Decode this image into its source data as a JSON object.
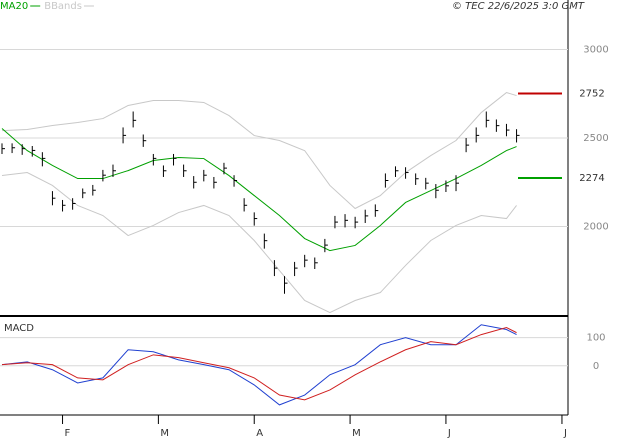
{
  "header": {
    "credit": "© TEC 22/6/2025 3:0 GMT"
  },
  "chart_data": [
    {
      "type": "hlc",
      "xlim": [
        0,
        112
      ],
      "ylim": [
        1500,
        3280
      ],
      "yticks": [
        3000,
        2500,
        2000
      ],
      "grid": true,
      "bars": {
        "color": "#000000",
        "x": [
          0,
          2,
          4,
          6,
          8,
          10,
          12,
          14,
          16,
          18,
          20,
          22,
          24,
          26,
          28,
          30,
          32,
          34,
          36,
          38,
          40,
          42,
          44,
          46,
          48,
          50,
          52,
          54,
          56,
          58,
          60,
          62,
          64,
          66,
          68,
          70,
          72,
          74,
          76,
          78,
          80,
          82,
          84,
          86,
          88,
          90,
          92,
          94,
          96,
          98,
          100,
          102
        ],
        "high": [
          2470,
          2470,
          2465,
          2455,
          2420,
          2200,
          2150,
          2160,
          2215,
          2235,
          2320,
          2350,
          2560,
          2650,
          2520,
          2410,
          2345,
          2410,
          2350,
          2285,
          2320,
          2280,
          2360,
          2290,
          2160,
          2080,
          1960,
          1810,
          1720,
          1800,
          1840,
          1825,
          1930,
          2060,
          2070,
          2055,
          2095,
          2125,
          2300,
          2340,
          2335,
          2300,
          2275,
          2240,
          2260,
          2290,
          2500,
          2560,
          2650,
          2605,
          2580,
          2550
        ],
        "low": [
          2410,
          2415,
          2405,
          2395,
          2340,
          2120,
          2085,
          2095,
          2160,
          2175,
          2255,
          2280,
          2470,
          2560,
          2450,
          2345,
          2280,
          2345,
          2280,
          2215,
          2255,
          2215,
          2295,
          2225,
          2085,
          2005,
          1875,
          1720,
          1620,
          1720,
          1770,
          1760,
          1855,
          1990,
          1995,
          1990,
          2020,
          2055,
          2220,
          2280,
          2270,
          2235,
          2210,
          2160,
          2195,
          2200,
          2420,
          2475,
          2560,
          2535,
          2510,
          2475
        ],
        "close": [
          2440,
          2445,
          2440,
          2430,
          2385,
          2160,
          2120,
          2130,
          2190,
          2205,
          2290,
          2315,
          2515,
          2600,
          2485,
          2385,
          2315,
          2385,
          2315,
          2250,
          2290,
          2250,
          2330,
          2260,
          2120,
          2045,
          1920,
          1765,
          1680,
          1765,
          1810,
          1795,
          1895,
          2025,
          2035,
          2025,
          2060,
          2090,
          2260,
          2315,
          2305,
          2270,
          2245,
          2205,
          2230,
          2245,
          2460,
          2515,
          2600,
          2570,
          2545,
          2515
        ]
      },
      "series": [
        {
          "name": "MA20",
          "color": "#00a000",
          "x": [
            0,
            5,
            10,
            15,
            20,
            25,
            30,
            35,
            40,
            45,
            50,
            55,
            60,
            65,
            70,
            75,
            80,
            85,
            90,
            95,
            100,
            102
          ],
          "values": [
            2554,
            2429,
            2345,
            2271,
            2271,
            2316,
            2373,
            2390,
            2384,
            2288,
            2175,
            2062,
            1932,
            1864,
            1893,
            2006,
            2136,
            2203,
            2271,
            2345,
            2429,
            2452
          ]
        },
        {
          "name": "BBands",
          "color": "#c8c8c8",
          "x": [
            0,
            5,
            10,
            15,
            20,
            25,
            30,
            35,
            40,
            45,
            50,
            55,
            60,
            65,
            70,
            75,
            80,
            85,
            90,
            95,
            100,
            102
          ],
          "upper": [
            2542,
            2548,
            2571,
            2588,
            2610,
            2684,
            2712,
            2712,
            2701,
            2627,
            2514,
            2486,
            2429,
            2232,
            2102,
            2175,
            2305,
            2401,
            2486,
            2644,
            2757,
            2740
          ],
          "lower": [
            2288,
            2305,
            2232,
            2119,
            2062,
            1949,
            2006,
            2079,
            2119,
            2062,
            1921,
            1751,
            1582,
            1514,
            1582,
            1627,
            1780,
            1921,
            2006,
            2062,
            2045,
            2119
          ]
        }
      ],
      "levels": [
        {
          "value": 2752,
          "color": "#c00000"
        },
        {
          "value": 2274,
          "color": "#00a000"
        }
      ]
    },
    {
      "type": "line",
      "title": "MACD",
      "xlim": [
        0,
        112
      ],
      "ylim": [
        -175,
        170
      ],
      "yticks": [
        100,
        0
      ],
      "grid": true,
      "xticks": [
        {
          "value": 12,
          "label": "F"
        },
        {
          "value": 31,
          "label": "M"
        },
        {
          "value": 50,
          "label": "A"
        },
        {
          "value": 69,
          "label": "M"
        },
        {
          "value": 88,
          "label": "J"
        },
        {
          "value": 111,
          "label": "J"
        }
      ],
      "x": [
        0,
        5,
        10,
        15,
        20,
        25,
        30,
        35,
        40,
        45,
        50,
        55,
        60,
        65,
        70,
        75,
        80,
        85,
        90,
        95,
        100,
        102
      ],
      "series": [
        {
          "color": "#2040d0",
          "values": [
            4,
            14,
            -14,
            -61,
            -43,
            57,
            50,
            21,
            4,
            -14,
            -68,
            -139,
            -104,
            -32,
            4,
            75,
            100,
            75,
            75,
            146,
            129,
            111
          ]
        },
        {
          "color": "#d02020",
          "values": [
            4,
            11,
            4,
            -43,
            -50,
            4,
            39,
            29,
            11,
            -7,
            -43,
            -104,
            -121,
            -86,
            -32,
            14,
            57,
            86,
            75,
            111,
            136,
            118
          ]
        }
      ]
    }
  ]
}
